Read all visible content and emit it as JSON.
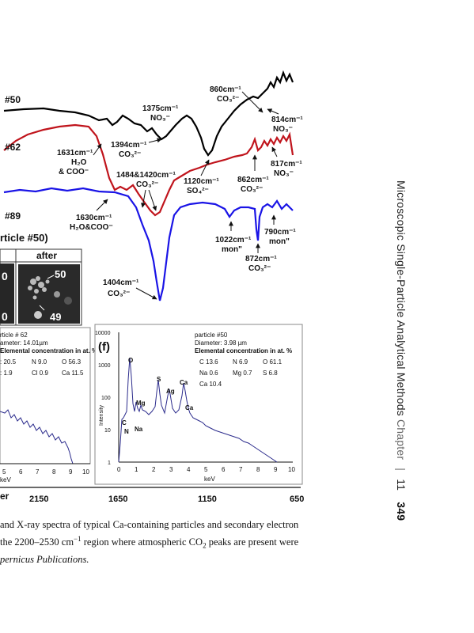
{
  "page_header": {
    "running_title": "Microscopic Single-Particle Analytical Methods",
    "chapter_label": "Chapter",
    "chapter_number": "11",
    "page_number": "349"
  },
  "ftir": {
    "sample_labels": [
      "#50",
      "#62",
      "#89"
    ],
    "x_ticks": [
      "2150",
      "1650",
      "1150",
      "650"
    ],
    "x_axis_partial": "er",
    "colors": {
      "p50": "#000000",
      "p62": "#c0141c",
      "p89": "#1a14e6"
    },
    "annotations": {
      "a860": [
        "860cm⁻¹",
        "CO₃²⁻"
      ],
      "a1375": [
        "1375cm⁻¹",
        "NO₃⁻"
      ],
      "a814": [
        "814cm⁻¹",
        "NO₃⁻"
      ],
      "a1394": [
        "1394cm⁻¹",
        "CO₃²⁻"
      ],
      "a1631": [
        "1631cm⁻¹",
        "H₂O",
        "& COO⁻"
      ],
      "a1484": [
        "1484&1420cm⁻¹",
        "CO₃²⁻"
      ],
      "a1120": [
        "1120cm⁻¹",
        "SO₄²⁻"
      ],
      "a862": [
        "862cm⁻¹",
        "CO₃²⁻"
      ],
      "a817": [
        "817cm⁻¹",
        "NO₃⁻"
      ],
      "a1630": [
        "1630cm⁻¹",
        "H₂O&COO⁻"
      ],
      "a1022": [
        "1022cm⁻¹",
        "mon\""
      ],
      "a790": [
        "790cm⁻¹",
        "mon\""
      ],
      "a872": [
        "872cm⁻¹",
        "CO₃²⁻"
      ],
      "a1404": [
        "1404cm⁻¹",
        "CO₃²⁻"
      ]
    }
  },
  "sem_panel": {
    "title_partial": "rticle #50)",
    "after_label": "after",
    "particle_labels": [
      "50",
      "49"
    ]
  },
  "edx_left": {
    "info": [
      "rticle # 62",
      "ameter:  14.01µm",
      "Elemental concentration in at. %"
    ],
    "conc_row1": [
      ": 20.5",
      "N 9.0",
      "O 56.3"
    ],
    "conc_row2": [
      ": 1.9",
      "Cl 0.9",
      "Ca 11.5"
    ],
    "x_ticks": [
      "5",
      "6",
      "7",
      "8",
      "9",
      "10"
    ],
    "x_label": "keV"
  },
  "edx_right": {
    "panel_label": "(f)",
    "info": [
      "particle #50",
      "Diameter:  3.98 µm",
      "Elemental concentration in at. %"
    ],
    "conc_row1": [
      "C  13.6",
      "N 6.9",
      "O 61.1"
    ],
    "conc_row2": [
      "Na 0.6",
      "Mg 0.7",
      "S 6.8"
    ],
    "conc_row3": [
      "Ca 10.4"
    ],
    "y_ticks": [
      "10000",
      "1000",
      "100",
      "10",
      "1"
    ],
    "y_label": "Intensity",
    "x_ticks": [
      "0",
      "1",
      "2",
      "3",
      "4",
      "5",
      "6",
      "7",
      "8",
      "9",
      "10"
    ],
    "x_label": "keV",
    "peak_labels": [
      "O",
      "S",
      "Ag",
      "Ca",
      "Ca",
      "Mg",
      "C",
      "N",
      "Na"
    ]
  },
  "caption": {
    "line1": "and X-ray spectra of typical Ca-containing particles and secondary electron",
    "line2_a": "the 2200–2530 cm",
    "line2_sup": "−1",
    "line2_b": " region where atmospheric CO",
    "line2_sub": "2",
    "line2_c": " peaks are present were",
    "line3": "pernicus Publications."
  }
}
